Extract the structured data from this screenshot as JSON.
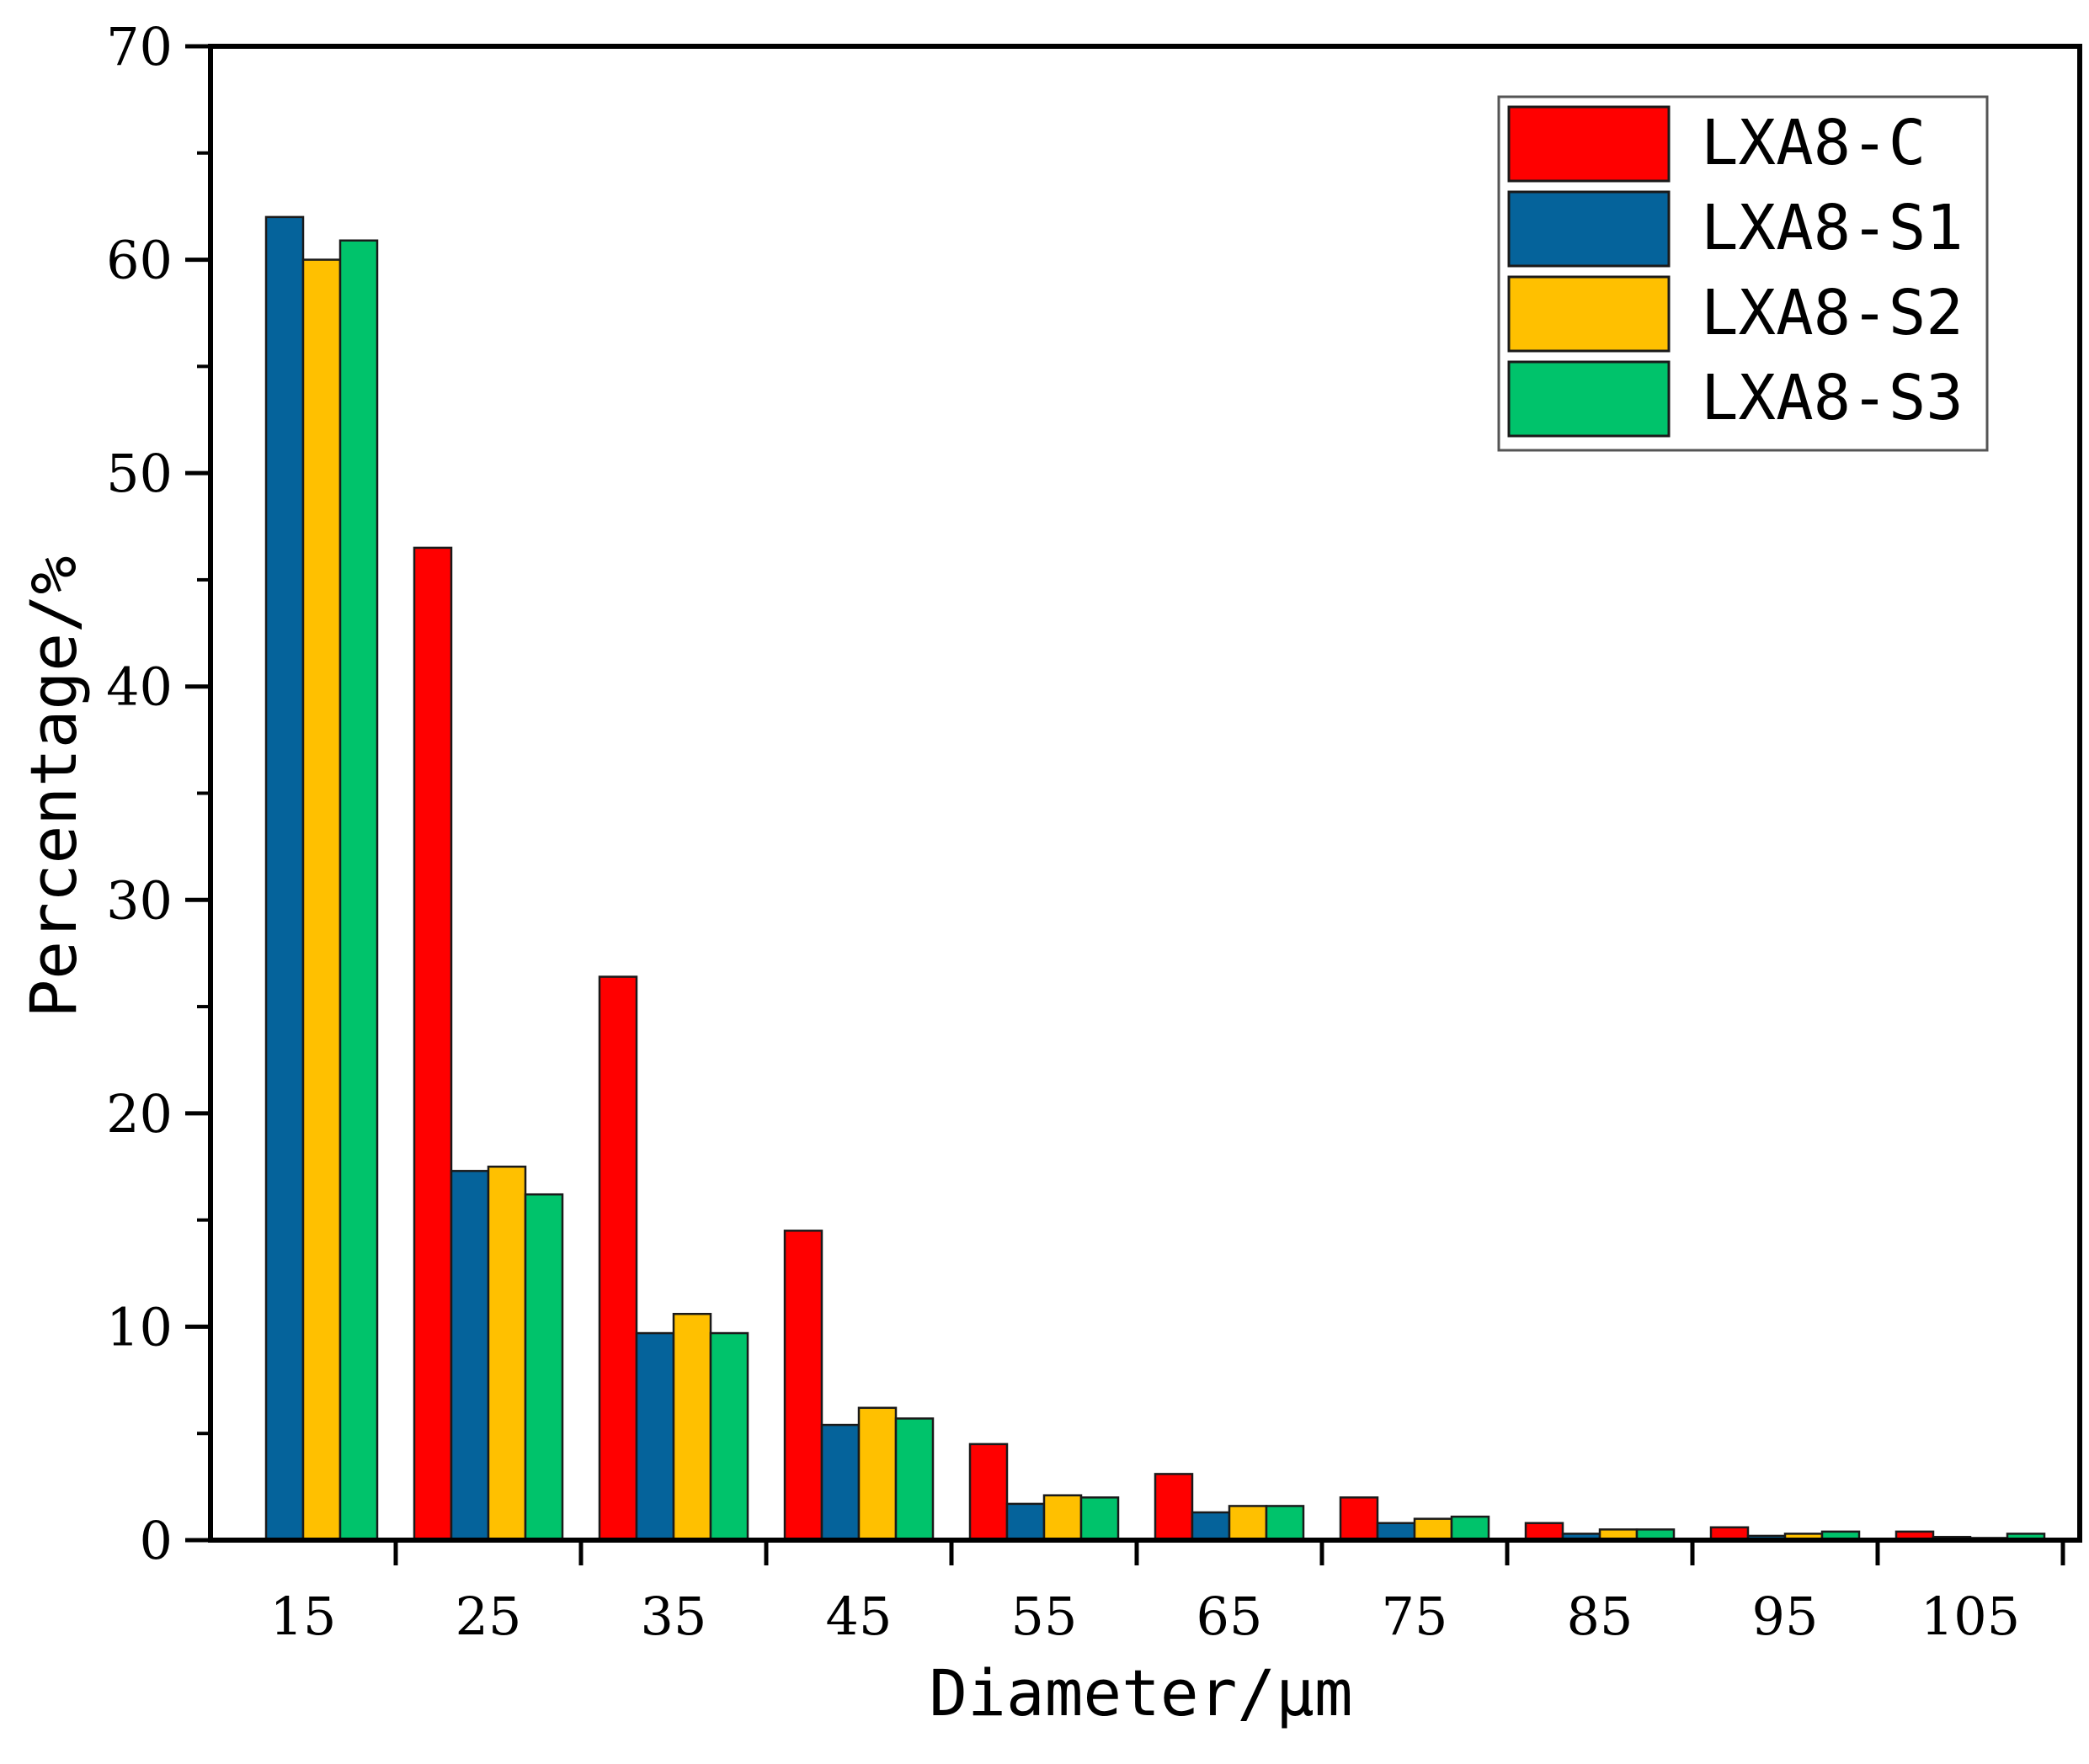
{
  "chart_data": {
    "type": "bar",
    "title": "",
    "xlabel": "Diameter/μm",
    "ylabel": "Percentage/%",
    "ylim": [
      0,
      70
    ],
    "yticks": [
      "0",
      "10",
      "20",
      "30",
      "40",
      "50",
      "60",
      "70"
    ],
    "categories": [
      "15",
      "25",
      "35",
      "45",
      "55",
      "65",
      "75",
      "85",
      "95",
      "105"
    ],
    "legend_position": "top-right",
    "grid": false,
    "series": [
      {
        "name": "LXA8-C",
        "color": "#ff0000",
        "values": [
          0,
          46.5,
          26.4,
          14.5,
          4.5,
          3.1,
          2.0,
          0.8,
          0.6,
          0.4
        ]
      },
      {
        "name": "LXA8-S1",
        "color": "#05639b",
        "values": [
          62.0,
          17.3,
          9.7,
          5.4,
          1.7,
          1.3,
          0.8,
          0.3,
          0.2,
          0.15
        ]
      },
      {
        "name": "LXA8-S2",
        "color": "#ffc000",
        "values": [
          60.0,
          17.5,
          10.6,
          6.2,
          2.1,
          1.6,
          1.0,
          0.5,
          0.3,
          0.1
        ]
      },
      {
        "name": "LXA8-S3",
        "color": "#00c36b",
        "values": [
          60.9,
          16.2,
          9.7,
          5.7,
          2.0,
          1.6,
          1.1,
          0.5,
          0.4,
          0.3
        ]
      }
    ]
  }
}
